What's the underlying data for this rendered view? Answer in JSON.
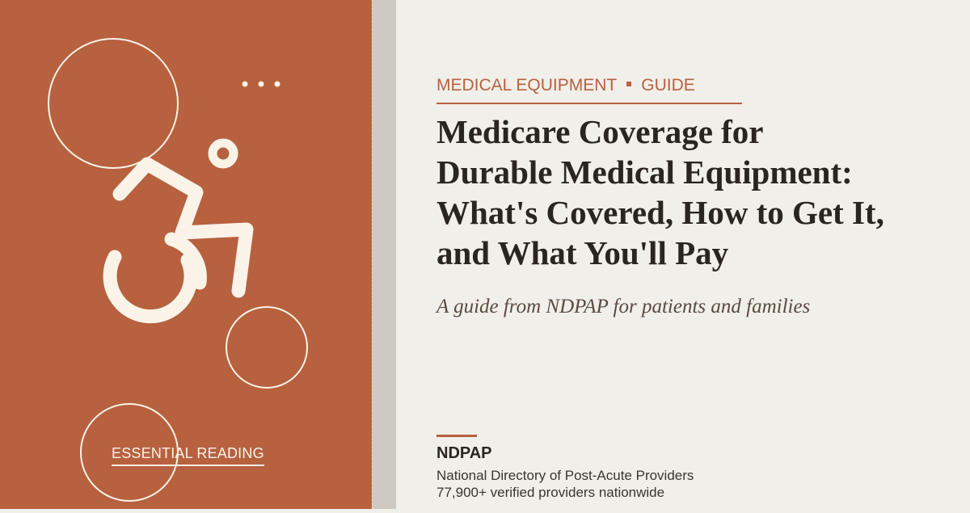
{
  "panel": {
    "badge": "ESSENTIAL READING"
  },
  "header": {
    "category": "MEDICAL EQUIPMENT",
    "label": "GUIDE"
  },
  "title_lines": [
    "Medicare Coverage for",
    "Durable Medical Equipment:",
    "What's Covered, How to Get It,",
    "and What You'll Pay"
  ],
  "subtitle": "A guide from NDPAP for patients and families",
  "publisher": {
    "name": "NDPAP",
    "full_name": "National Directory of Post-Acute Providers",
    "tagline": "77,900+ verified providers nationwide"
  }
}
